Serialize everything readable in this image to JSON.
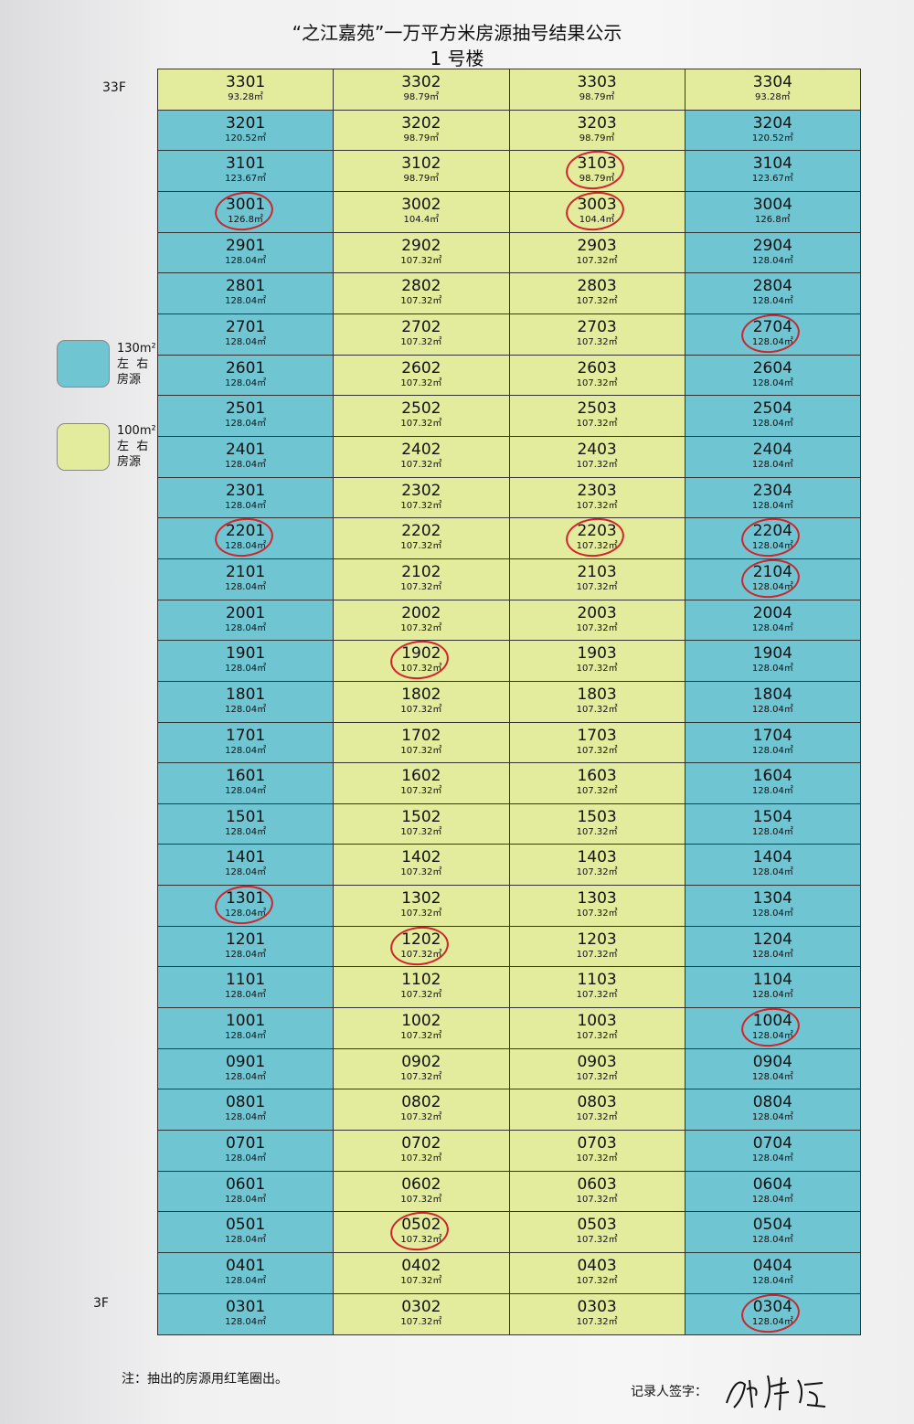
{
  "title": "“之江嘉苑”一万平方米房源抽号结果公示",
  "subtitle": "1 号楼",
  "floor_top": "33F",
  "floor_bottom": "3F",
  "colors": {
    "blue": "#6fc5d2",
    "yellow": "#e3ec9d",
    "circle": "#d0232b"
  },
  "legend": [
    {
      "type": "blue",
      "size": "130m²",
      "line2": "左  右",
      "line3": "房源"
    },
    {
      "type": "yellow",
      "size": "100m²",
      "line2": "左  右",
      "line3": "房源"
    }
  ],
  "rows": [
    {
      "floor": "33",
      "units": [
        {
          "no": "3301",
          "area": "93.28㎡",
          "type": "yellow"
        },
        {
          "no": "3302",
          "area": "98.79㎡",
          "type": "yellow"
        },
        {
          "no": "3303",
          "area": "98.79㎡",
          "type": "yellow"
        },
        {
          "no": "3304",
          "area": "93.28㎡",
          "type": "yellow"
        }
      ]
    },
    {
      "floor": "32",
      "units": [
        {
          "no": "3201",
          "area": "120.52㎡",
          "type": "blue"
        },
        {
          "no": "3202",
          "area": "98.79㎡",
          "type": "yellow"
        },
        {
          "no": "3203",
          "area": "98.79㎡",
          "type": "yellow"
        },
        {
          "no": "3204",
          "area": "120.52㎡",
          "type": "blue"
        }
      ]
    },
    {
      "floor": "31",
      "units": [
        {
          "no": "3101",
          "area": "123.67㎡",
          "type": "blue"
        },
        {
          "no": "3102",
          "area": "98.79㎡",
          "type": "yellow"
        },
        {
          "no": "3103",
          "area": "98.79㎡",
          "type": "yellow",
          "circled": true
        },
        {
          "no": "3104",
          "area": "123.67㎡",
          "type": "blue"
        }
      ]
    },
    {
      "floor": "30",
      "units": [
        {
          "no": "3001",
          "area": "126.8㎡",
          "type": "blue",
          "circled": true
        },
        {
          "no": "3002",
          "area": "104.4㎡",
          "type": "yellow"
        },
        {
          "no": "3003",
          "area": "104.4㎡",
          "type": "yellow",
          "circled": true
        },
        {
          "no": "3004",
          "area": "126.8㎡",
          "type": "blue"
        }
      ]
    },
    {
      "floor": "29",
      "units": [
        {
          "no": "2901",
          "area": "128.04㎡",
          "type": "blue"
        },
        {
          "no": "2902",
          "area": "107.32㎡",
          "type": "yellow"
        },
        {
          "no": "2903",
          "area": "107.32㎡",
          "type": "yellow"
        },
        {
          "no": "2904",
          "area": "128.04㎡",
          "type": "blue"
        }
      ]
    },
    {
      "floor": "28",
      "units": [
        {
          "no": "2801",
          "area": "128.04㎡",
          "type": "blue"
        },
        {
          "no": "2802",
          "area": "107.32㎡",
          "type": "yellow"
        },
        {
          "no": "2803",
          "area": "107.32㎡",
          "type": "yellow"
        },
        {
          "no": "2804",
          "area": "128.04㎡",
          "type": "blue"
        }
      ]
    },
    {
      "floor": "27",
      "units": [
        {
          "no": "2701",
          "area": "128.04㎡",
          "type": "blue"
        },
        {
          "no": "2702",
          "area": "107.32㎡",
          "type": "yellow"
        },
        {
          "no": "2703",
          "area": "107.32㎡",
          "type": "yellow"
        },
        {
          "no": "2704",
          "area": "128.04㎡",
          "type": "blue",
          "circled": true
        }
      ]
    },
    {
      "floor": "26",
      "units": [
        {
          "no": "2601",
          "area": "128.04㎡",
          "type": "blue"
        },
        {
          "no": "2602",
          "area": "107.32㎡",
          "type": "yellow"
        },
        {
          "no": "2603",
          "area": "107.32㎡",
          "type": "yellow"
        },
        {
          "no": "2604",
          "area": "128.04㎡",
          "type": "blue"
        }
      ]
    },
    {
      "floor": "25",
      "units": [
        {
          "no": "2501",
          "area": "128.04㎡",
          "type": "blue"
        },
        {
          "no": "2502",
          "area": "107.32㎡",
          "type": "yellow"
        },
        {
          "no": "2503",
          "area": "107.32㎡",
          "type": "yellow"
        },
        {
          "no": "2504",
          "area": "128.04㎡",
          "type": "blue"
        }
      ]
    },
    {
      "floor": "24",
      "units": [
        {
          "no": "2401",
          "area": "128.04㎡",
          "type": "blue"
        },
        {
          "no": "2402",
          "area": "107.32㎡",
          "type": "yellow"
        },
        {
          "no": "2403",
          "area": "107.32㎡",
          "type": "yellow"
        },
        {
          "no": "2404",
          "area": "128.04㎡",
          "type": "blue"
        }
      ]
    },
    {
      "floor": "23",
      "units": [
        {
          "no": "2301",
          "area": "128.04㎡",
          "type": "blue"
        },
        {
          "no": "2302",
          "area": "107.32㎡",
          "type": "yellow"
        },
        {
          "no": "2303",
          "area": "107.32㎡",
          "type": "yellow"
        },
        {
          "no": "2304",
          "area": "128.04㎡",
          "type": "blue"
        }
      ]
    },
    {
      "floor": "22",
      "units": [
        {
          "no": "2201",
          "area": "128.04㎡",
          "type": "blue",
          "circled": true
        },
        {
          "no": "2202",
          "area": "107.32㎡",
          "type": "yellow"
        },
        {
          "no": "2203",
          "area": "107.32㎡",
          "type": "yellow",
          "circled": true
        },
        {
          "no": "2204",
          "area": "128.04㎡",
          "type": "blue",
          "circled": true
        }
      ]
    },
    {
      "floor": "21",
      "units": [
        {
          "no": "2101",
          "area": "128.04㎡",
          "type": "blue"
        },
        {
          "no": "2102",
          "area": "107.32㎡",
          "type": "yellow"
        },
        {
          "no": "2103",
          "area": "107.32㎡",
          "type": "yellow"
        },
        {
          "no": "2104",
          "area": "128.04㎡",
          "type": "blue",
          "circled": true
        }
      ]
    },
    {
      "floor": "20",
      "units": [
        {
          "no": "2001",
          "area": "128.04㎡",
          "type": "blue"
        },
        {
          "no": "2002",
          "area": "107.32㎡",
          "type": "yellow"
        },
        {
          "no": "2003",
          "area": "107.32㎡",
          "type": "yellow"
        },
        {
          "no": "2004",
          "area": "128.04㎡",
          "type": "blue"
        }
      ]
    },
    {
      "floor": "19",
      "units": [
        {
          "no": "1901",
          "area": "128.04㎡",
          "type": "blue"
        },
        {
          "no": "1902",
          "area": "107.32㎡",
          "type": "yellow",
          "circled": true
        },
        {
          "no": "1903",
          "area": "107.32㎡",
          "type": "yellow"
        },
        {
          "no": "1904",
          "area": "128.04㎡",
          "type": "blue"
        }
      ]
    },
    {
      "floor": "18",
      "units": [
        {
          "no": "1801",
          "area": "128.04㎡",
          "type": "blue"
        },
        {
          "no": "1802",
          "area": "107.32㎡",
          "type": "yellow"
        },
        {
          "no": "1803",
          "area": "107.32㎡",
          "type": "yellow"
        },
        {
          "no": "1804",
          "area": "128.04㎡",
          "type": "blue"
        }
      ]
    },
    {
      "floor": "17",
      "units": [
        {
          "no": "1701",
          "area": "128.04㎡",
          "type": "blue"
        },
        {
          "no": "1702",
          "area": "107.32㎡",
          "type": "yellow"
        },
        {
          "no": "1703",
          "area": "107.32㎡",
          "type": "yellow"
        },
        {
          "no": "1704",
          "area": "128.04㎡",
          "type": "blue"
        }
      ]
    },
    {
      "floor": "16",
      "units": [
        {
          "no": "1601",
          "area": "128.04㎡",
          "type": "blue"
        },
        {
          "no": "1602",
          "area": "107.32㎡",
          "type": "yellow"
        },
        {
          "no": "1603",
          "area": "107.32㎡",
          "type": "yellow"
        },
        {
          "no": "1604",
          "area": "128.04㎡",
          "type": "blue"
        }
      ]
    },
    {
      "floor": "15",
      "units": [
        {
          "no": "1501",
          "area": "128.04㎡",
          "type": "blue"
        },
        {
          "no": "1502",
          "area": "107.32㎡",
          "type": "yellow"
        },
        {
          "no": "1503",
          "area": "107.32㎡",
          "type": "yellow"
        },
        {
          "no": "1504",
          "area": "128.04㎡",
          "type": "blue"
        }
      ]
    },
    {
      "floor": "14",
      "units": [
        {
          "no": "1401",
          "area": "128.04㎡",
          "type": "blue"
        },
        {
          "no": "1402",
          "area": "107.32㎡",
          "type": "yellow"
        },
        {
          "no": "1403",
          "area": "107.32㎡",
          "type": "yellow"
        },
        {
          "no": "1404",
          "area": "128.04㎡",
          "type": "blue"
        }
      ]
    },
    {
      "floor": "13",
      "units": [
        {
          "no": "1301",
          "area": "128.04㎡",
          "type": "blue",
          "circled": true
        },
        {
          "no": "1302",
          "area": "107.32㎡",
          "type": "yellow"
        },
        {
          "no": "1303",
          "area": "107.32㎡",
          "type": "yellow"
        },
        {
          "no": "1304",
          "area": "128.04㎡",
          "type": "blue"
        }
      ]
    },
    {
      "floor": "12",
      "units": [
        {
          "no": "1201",
          "area": "128.04㎡",
          "type": "blue"
        },
        {
          "no": "1202",
          "area": "107.32㎡",
          "type": "yellow",
          "circled": true
        },
        {
          "no": "1203",
          "area": "107.32㎡",
          "type": "yellow"
        },
        {
          "no": "1204",
          "area": "128.04㎡",
          "type": "blue"
        }
      ]
    },
    {
      "floor": "11",
      "units": [
        {
          "no": "1101",
          "area": "128.04㎡",
          "type": "blue"
        },
        {
          "no": "1102",
          "area": "107.32㎡",
          "type": "yellow"
        },
        {
          "no": "1103",
          "area": "107.32㎡",
          "type": "yellow"
        },
        {
          "no": "1104",
          "area": "128.04㎡",
          "type": "blue"
        }
      ]
    },
    {
      "floor": "10",
      "units": [
        {
          "no": "1001",
          "area": "128.04㎡",
          "type": "blue"
        },
        {
          "no": "1002",
          "area": "107.32㎡",
          "type": "yellow"
        },
        {
          "no": "1003",
          "area": "107.32㎡",
          "type": "yellow"
        },
        {
          "no": "1004",
          "area": "128.04㎡",
          "type": "blue",
          "circled": true
        }
      ]
    },
    {
      "floor": "9",
      "units": [
        {
          "no": "0901",
          "area": "128.04㎡",
          "type": "blue"
        },
        {
          "no": "0902",
          "area": "107.32㎡",
          "type": "yellow"
        },
        {
          "no": "0903",
          "area": "107.32㎡",
          "type": "yellow"
        },
        {
          "no": "0904",
          "area": "128.04㎡",
          "type": "blue"
        }
      ]
    },
    {
      "floor": "8",
      "units": [
        {
          "no": "0801",
          "area": "128.04㎡",
          "type": "blue"
        },
        {
          "no": "0802",
          "area": "107.32㎡",
          "type": "yellow"
        },
        {
          "no": "0803",
          "area": "107.32㎡",
          "type": "yellow"
        },
        {
          "no": "0804",
          "area": "128.04㎡",
          "type": "blue"
        }
      ]
    },
    {
      "floor": "7",
      "units": [
        {
          "no": "0701",
          "area": "128.04㎡",
          "type": "blue"
        },
        {
          "no": "0702",
          "area": "107.32㎡",
          "type": "yellow"
        },
        {
          "no": "0703",
          "area": "107.32㎡",
          "type": "yellow"
        },
        {
          "no": "0704",
          "area": "128.04㎡",
          "type": "blue"
        }
      ]
    },
    {
      "floor": "6",
      "units": [
        {
          "no": "0601",
          "area": "128.04㎡",
          "type": "blue"
        },
        {
          "no": "0602",
          "area": "107.32㎡",
          "type": "yellow"
        },
        {
          "no": "0603",
          "area": "107.32㎡",
          "type": "yellow"
        },
        {
          "no": "0604",
          "area": "128.04㎡",
          "type": "blue"
        }
      ]
    },
    {
      "floor": "5",
      "units": [
        {
          "no": "0501",
          "area": "128.04㎡",
          "type": "blue"
        },
        {
          "no": "0502",
          "area": "107.32㎡",
          "type": "yellow",
          "circled": true
        },
        {
          "no": "0503",
          "area": "107.32㎡",
          "type": "yellow"
        },
        {
          "no": "0504",
          "area": "128.04㎡",
          "type": "blue"
        }
      ]
    },
    {
      "floor": "4",
      "units": [
        {
          "no": "0401",
          "area": "128.04㎡",
          "type": "blue"
        },
        {
          "no": "0402",
          "area": "107.32㎡",
          "type": "yellow"
        },
        {
          "no": "0403",
          "area": "107.32㎡",
          "type": "yellow"
        },
        {
          "no": "0404",
          "area": "128.04㎡",
          "type": "blue"
        }
      ]
    },
    {
      "floor": "3",
      "units": [
        {
          "no": "0301",
          "area": "128.04㎡",
          "type": "blue"
        },
        {
          "no": "0302",
          "area": "107.32㎡",
          "type": "yellow"
        },
        {
          "no": "0303",
          "area": "107.32㎡",
          "type": "yellow"
        },
        {
          "no": "0304",
          "area": "128.04㎡",
          "type": "blue",
          "circled": true
        }
      ]
    }
  ],
  "note": "注：抽出的房源用红笔圈出。",
  "signature_label": "记录人签字："
}
